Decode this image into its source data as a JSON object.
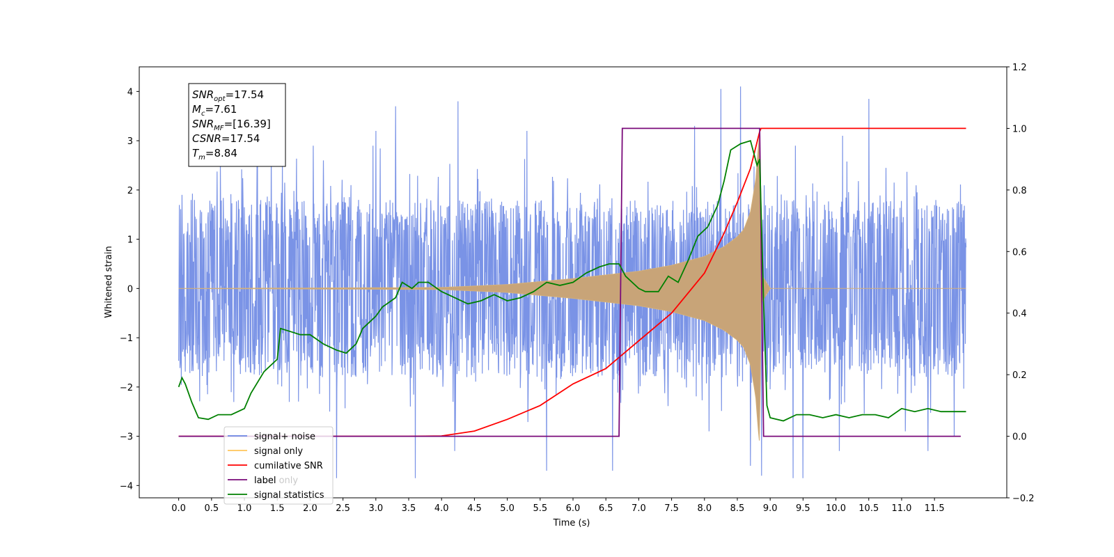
{
  "chart_data": {
    "type": "line",
    "xlabel": "Time (s)",
    "ylabel": "Whitened strain",
    "xlim": [
      -0.6,
      12.6
    ],
    "ylim": [
      -4.25,
      4.5
    ],
    "ylim_right": [
      -0.2,
      1.2
    ],
    "x_ticks": [
      "0.0",
      "0.5",
      "1.0",
      "1.5",
      "2.0",
      "2.5",
      "3.0",
      "3.5",
      "4.0",
      "4.5",
      "5.0",
      "5.5",
      "6.0",
      "6.5",
      "7.0",
      "7.5",
      "8.0",
      "8.5",
      "9.0",
      "9.5",
      "10.0",
      "10.5",
      "11.0",
      "11.5"
    ],
    "y_ticks_left": [
      "4",
      "3",
      "2",
      "1",
      "0",
      "−1",
      "−2",
      "−3",
      "−4"
    ],
    "y_ticks_right": [
      "1.2",
      "1.0",
      "0.8",
      "0.6",
      "0.4",
      "0.2",
      "0.0",
      "−0.2"
    ],
    "annotation": {
      "lines": [
        {
          "var": "SNR",
          "sub": "opt",
          "value": "=17.54"
        },
        {
          "var": "M",
          "sub": "c",
          "value": "=7.61"
        },
        {
          "var": "SNR",
          "sub": "MF",
          "value": "=[16.39]"
        },
        {
          "var": "CSNR",
          "sub": "",
          "value": "=17.54"
        },
        {
          "var": "T",
          "sub": "m",
          "value": "=8.84"
        }
      ]
    },
    "legend": {
      "placement": "lower-left",
      "items": [
        {
          "label": "signal+ noise",
          "color": "#6b87e3"
        },
        {
          "label": "signal only",
          "color": "#ffc55a"
        },
        {
          "label": "cumilative SNR",
          "color": "#ff0000"
        },
        {
          "label": "label",
          "color": "#7a0a7a"
        },
        {
          "label": "signal statistics",
          "color": "#008000"
        }
      ],
      "hidden_text": "label only"
    },
    "series": [
      {
        "name": "signal+ noise",
        "axis": "left",
        "color": "#6b87e3",
        "x_range": [
          0.0,
          11.98
        ],
        "approx_amplitude": 1.9,
        "peak_values": [
          [
            0.05,
            1.9
          ],
          [
            1.2,
            2.9
          ],
          [
            2.2,
            2.6
          ],
          [
            3.0,
            3.2
          ],
          [
            3.3,
            3.7
          ],
          [
            4.25,
            3.8
          ],
          [
            5.3,
            3.2
          ],
          [
            6.6,
            3.8
          ],
          [
            7.85,
            3.3
          ],
          [
            8.25,
            4.05
          ],
          [
            8.55,
            4.1
          ],
          [
            8.87,
            3.55
          ],
          [
            10.1,
            3.1
          ],
          [
            10.5,
            3.85
          ],
          [
            11.4,
            3.55
          ],
          [
            11.8,
            3.1
          ]
        ],
        "trough_values": [
          [
            2.4,
            -3.85
          ],
          [
            3.6,
            -3.85
          ],
          [
            4.2,
            -3.3
          ],
          [
            5.6,
            -3.7
          ],
          [
            6.6,
            -3.7
          ],
          [
            8.7,
            -3.6
          ],
          [
            8.87,
            -3.8
          ],
          [
            9.35,
            -3.85
          ],
          [
            9.5,
            -3.85
          ],
          [
            10.05,
            -3.3
          ],
          [
            11.4,
            -3.3
          ],
          [
            11.8,
            -3.0
          ]
        ]
      },
      {
        "name": "signal only",
        "axis": "left",
        "color": "#c8a478",
        "x_range": [
          0.0,
          11.98
        ],
        "envelope": [
          [
            0.0,
            0.0
          ],
          [
            4.0,
            0.02
          ],
          [
            5.0,
            0.08
          ],
          [
            6.0,
            0.2
          ],
          [
            7.0,
            0.35
          ],
          [
            7.5,
            0.47
          ],
          [
            8.0,
            0.65
          ],
          [
            8.3,
            0.85
          ],
          [
            8.5,
            1.05
          ],
          [
            8.6,
            1.2
          ],
          [
            8.7,
            1.55
          ],
          [
            8.78,
            2.2
          ],
          [
            8.82,
            2.9
          ],
          [
            8.84,
            3.15
          ],
          [
            8.86,
            0.3
          ],
          [
            9.0,
            0.0
          ],
          [
            11.98,
            0.0
          ]
        ]
      },
      {
        "name": "cumilative SNR",
        "axis": "right",
        "color": "#ff0000",
        "points": [
          [
            0.0,
            0.0
          ],
          [
            3.5,
            0.0
          ],
          [
            4.0,
            0.001
          ],
          [
            4.5,
            0.017
          ],
          [
            5.0,
            0.055
          ],
          [
            5.5,
            0.1
          ],
          [
            6.0,
            0.17
          ],
          [
            6.5,
            0.22
          ],
          [
            7.0,
            0.31
          ],
          [
            7.5,
            0.4
          ],
          [
            8.0,
            0.53
          ],
          [
            8.3,
            0.66
          ],
          [
            8.5,
            0.76
          ],
          [
            8.7,
            0.87
          ],
          [
            8.84,
            0.99
          ],
          [
            8.86,
            1.0
          ],
          [
            11.98,
            1.0
          ]
        ]
      },
      {
        "name": "label",
        "axis": "right",
        "color": "#7a0a7a",
        "points": [
          [
            0.0,
            0.0
          ],
          [
            6.7,
            0.0
          ],
          [
            6.75,
            1.0
          ],
          [
            8.84,
            1.0
          ],
          [
            8.9,
            0.0
          ],
          [
            11.9,
            0.0
          ]
        ]
      },
      {
        "name": "signal statistics",
        "axis": "right",
        "color": "#008000",
        "points": [
          [
            0.0,
            0.16
          ],
          [
            0.05,
            0.19
          ],
          [
            0.1,
            0.17
          ],
          [
            0.2,
            0.11
          ],
          [
            0.3,
            0.06
          ],
          [
            0.45,
            0.055
          ],
          [
            0.6,
            0.07
          ],
          [
            0.8,
            0.07
          ],
          [
            1.0,
            0.09
          ],
          [
            1.1,
            0.14
          ],
          [
            1.3,
            0.21
          ],
          [
            1.5,
            0.25
          ],
          [
            1.55,
            0.35
          ],
          [
            1.7,
            0.34
          ],
          [
            1.85,
            0.33
          ],
          [
            2.0,
            0.33
          ],
          [
            2.2,
            0.3
          ],
          [
            2.4,
            0.28
          ],
          [
            2.55,
            0.27
          ],
          [
            2.7,
            0.3
          ],
          [
            2.8,
            0.35
          ],
          [
            3.0,
            0.39
          ],
          [
            3.1,
            0.42
          ],
          [
            3.3,
            0.45
          ],
          [
            3.4,
            0.5
          ],
          [
            3.55,
            0.48
          ],
          [
            3.65,
            0.5
          ],
          [
            3.8,
            0.5
          ],
          [
            4.0,
            0.47
          ],
          [
            4.2,
            0.45
          ],
          [
            4.4,
            0.43
          ],
          [
            4.6,
            0.44
          ],
          [
            4.8,
            0.46
          ],
          [
            5.0,
            0.44
          ],
          [
            5.2,
            0.45
          ],
          [
            5.4,
            0.47
          ],
          [
            5.6,
            0.5
          ],
          [
            5.8,
            0.49
          ],
          [
            6.0,
            0.5
          ],
          [
            6.2,
            0.53
          ],
          [
            6.4,
            0.55
          ],
          [
            6.55,
            0.56
          ],
          [
            6.7,
            0.56
          ],
          [
            6.8,
            0.52
          ],
          [
            7.0,
            0.48
          ],
          [
            7.1,
            0.47
          ],
          [
            7.3,
            0.47
          ],
          [
            7.45,
            0.52
          ],
          [
            7.6,
            0.5
          ],
          [
            7.75,
            0.57
          ],
          [
            7.9,
            0.65
          ],
          [
            8.05,
            0.68
          ],
          [
            8.2,
            0.75
          ],
          [
            8.3,
            0.83
          ],
          [
            8.4,
            0.93
          ],
          [
            8.55,
            0.95
          ],
          [
            8.7,
            0.96
          ],
          [
            8.8,
            0.88
          ],
          [
            8.84,
            0.9
          ],
          [
            8.9,
            0.44
          ],
          [
            8.95,
            0.1
          ],
          [
            9.0,
            0.06
          ],
          [
            9.2,
            0.05
          ],
          [
            9.4,
            0.07
          ],
          [
            9.6,
            0.07
          ],
          [
            9.8,
            0.06
          ],
          [
            10.0,
            0.07
          ],
          [
            10.2,
            0.06
          ],
          [
            10.4,
            0.07
          ],
          [
            10.6,
            0.07
          ],
          [
            10.8,
            0.06
          ],
          [
            11.0,
            0.09
          ],
          [
            11.2,
            0.08
          ],
          [
            11.4,
            0.09
          ],
          [
            11.6,
            0.08
          ],
          [
            11.8,
            0.08
          ],
          [
            11.98,
            0.08
          ]
        ]
      }
    ]
  }
}
